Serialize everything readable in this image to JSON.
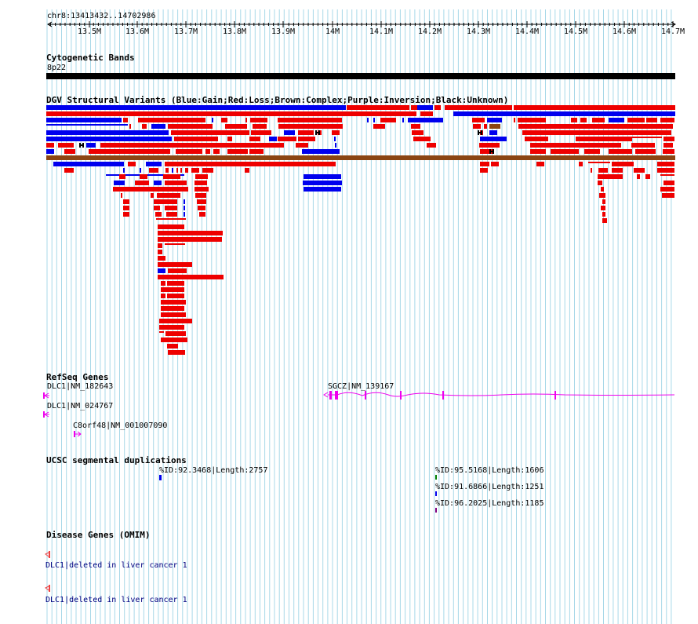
{
  "ruler": {
    "locus": "chr8:13413432..14702986",
    "ticks": [
      "13.5M",
      "13.6M",
      "13.7M",
      "13.8M",
      "13.9M",
      "14M",
      "14.1M",
      "14.2M",
      "14.3M",
      "14.4M",
      "14.5M",
      "14.6M",
      "14.7M"
    ]
  },
  "cytoband": {
    "title": "Cytogenetic Bands",
    "band": "8p22"
  },
  "dgv": {
    "title": "DGV Structural Variants (Blue:Gain;Red:Loss;Brown:Complex;Purple:Inversion;Black:Unknown)",
    "colors": {
      "gain": "#0000ee",
      "loss": "#ee0000",
      "complex": "#8b4513",
      "inversion": "#800080",
      "unknown": "#000000"
    }
  },
  "refseq": {
    "title": "RefSeq Genes",
    "genes": [
      {
        "label": "DLC1|NM_182643",
        "strand": "-"
      },
      {
        "label": "DLC1|NM_024767",
        "strand": "-"
      },
      {
        "label": "C8orf48|NM_001007090",
        "strand": "+"
      },
      {
        "label": "SGCZ|NM_139167",
        "strand": "-"
      }
    ],
    "color": "#ee00ee"
  },
  "segdup": {
    "title": "UCSC segmental duplications",
    "items": [
      {
        "label": "%ID:92.3468|Length:2757",
        "color": "#0000ee"
      },
      {
        "label": "%ID:95.5168|Length:1606",
        "color": "#008000"
      },
      {
        "label": "%ID:91.6866|Length:1251",
        "color": "#0000ee"
      },
      {
        "label": "%ID:96.2025|Length:1185",
        "color": "#800080"
      }
    ]
  },
  "omim": {
    "title": "Disease Genes (OMIM)",
    "items": [
      {
        "label": "DLC1|deleted in liver cancer 1"
      },
      {
        "label": "DLC1|deleted in liver cancer 1"
      }
    ],
    "color": "#ee4444"
  }
}
